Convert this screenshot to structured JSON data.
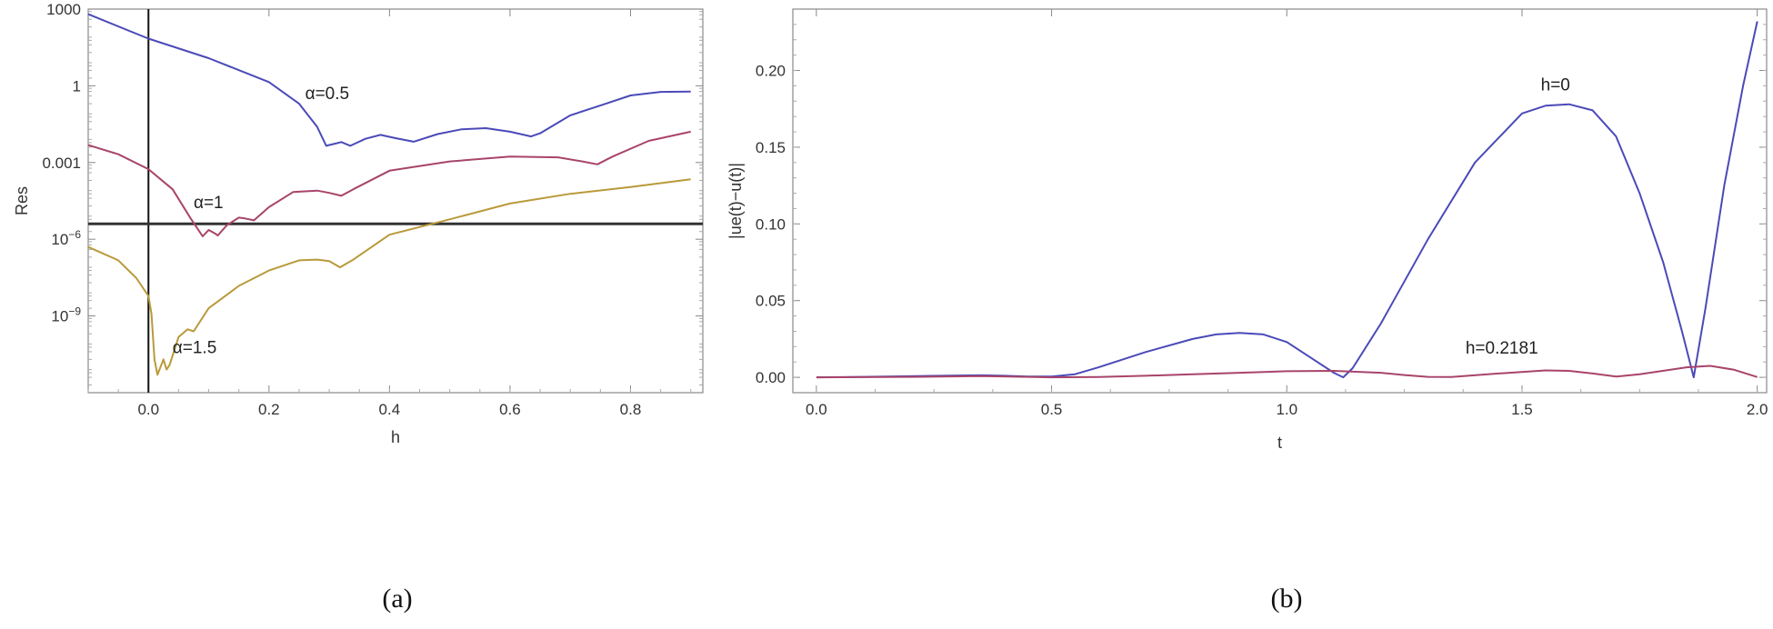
{
  "chart_data": [
    {
      "type": "line",
      "caption": "(a)",
      "xlabel": "h",
      "ylabel": "Res",
      "xscale": "linear",
      "yscale": "log",
      "xlim": [
        -0.1,
        0.92
      ],
      "ylim": [
        1e-12,
        1000
      ],
      "xticks": [
        {
          "v": 0.0,
          "label": "0.0"
        },
        {
          "v": 0.2,
          "label": "0.2"
        },
        {
          "v": 0.4,
          "label": "0.4"
        },
        {
          "v": 0.6,
          "label": "0.6"
        },
        {
          "v": 0.8,
          "label": "0.8"
        }
      ],
      "yticks": [
        {
          "v": 1000,
          "label": "1000",
          "exp": ""
        },
        {
          "v": 1,
          "label": "1",
          "exp": ""
        },
        {
          "v": 0.001,
          "label": "0.001",
          "exp": ""
        },
        {
          "v": 1e-06,
          "label": "10",
          "exp": "−6"
        },
        {
          "v": 1e-09,
          "label": "10",
          "exp": "−9"
        }
      ],
      "reference_lines": {
        "vertical_x": 0,
        "horizontal_y": 4e-06
      },
      "series": [
        {
          "color": "#4a4ab8",
          "label": "α=0.5",
          "label_pos": [
            0.26,
            0.3
          ],
          "points": [
            [
              -0.1,
              630
            ],
            [
              0,
              70
            ],
            [
              0.1,
              12
            ],
            [
              0.2,
              1.4
            ],
            [
              0.25,
              0.2
            ],
            [
              0.28,
              0.025
            ],
            [
              0.295,
              0.0045
            ],
            [
              0.31,
              0.0055
            ],
            [
              0.32,
              0.0063
            ],
            [
              0.335,
              0.0045
            ],
            [
              0.36,
              0.0085
            ],
            [
              0.385,
              0.012
            ],
            [
              0.41,
              0.009
            ],
            [
              0.44,
              0.0065
            ],
            [
              0.48,
              0.013
            ],
            [
              0.52,
              0.02
            ],
            [
              0.56,
              0.022
            ],
            [
              0.6,
              0.016
            ],
            [
              0.635,
              0.0105
            ],
            [
              0.65,
              0.014
            ],
            [
              0.7,
              0.07
            ],
            [
              0.75,
              0.17
            ],
            [
              0.8,
              0.42
            ],
            [
              0.85,
              0.58
            ],
            [
              0.9,
              0.59
            ]
          ]
        },
        {
          "color": "#a8446a",
          "label": "α=1",
          "label_pos": [
            0.075,
            1.65e-05
          ],
          "points": [
            [
              -0.1,
              0.0048
            ],
            [
              -0.05,
              0.0021
            ],
            [
              0,
              0.00055
            ],
            [
              0.04,
              9e-05
            ],
            [
              0.07,
              6.5e-06
            ],
            [
              0.09,
              1.3e-06
            ],
            [
              0.1,
              2.3e-06
            ],
            [
              0.11,
              1.7e-06
            ],
            [
              0.115,
              1.4e-06
            ],
            [
              0.13,
              3.5e-06
            ],
            [
              0.15,
              7e-06
            ],
            [
              0.16,
              6.5e-06
            ],
            [
              0.175,
              5.5e-06
            ],
            [
              0.2,
              1.8e-05
            ],
            [
              0.24,
              7e-05
            ],
            [
              0.28,
              8e-05
            ],
            [
              0.3,
              6.5e-05
            ],
            [
              0.32,
              5e-05
            ],
            [
              0.34,
              9e-05
            ],
            [
              0.4,
              0.00048
            ],
            [
              0.5,
              0.0011
            ],
            [
              0.6,
              0.0017
            ],
            [
              0.68,
              0.0016
            ],
            [
              0.72,
              0.0011
            ],
            [
              0.745,
              0.00085
            ],
            [
              0.77,
              0.0017
            ],
            [
              0.83,
              0.007
            ],
            [
              0.9,
              0.016
            ]
          ]
        },
        {
          "color": "#b99a3a",
          "label": "α=1.5",
          "label_pos": [
            0.04,
            3.5e-11
          ],
          "points": [
            [
              -0.1,
              5e-07
            ],
            [
              -0.05,
              1.5e-07
            ],
            [
              -0.02,
              3e-08
            ],
            [
              0,
              6e-09
            ],
            [
              0.005,
              1.2e-09
            ],
            [
              0.01,
              2e-11
            ],
            [
              0.015,
              5e-12
            ],
            [
              0.02,
              1e-11
            ],
            [
              0.025,
              2e-11
            ],
            [
              0.03,
              8e-12
            ],
            [
              0.035,
              1.2e-11
            ],
            [
              0.05,
              1.5e-10
            ],
            [
              0.065,
              3e-10
            ],
            [
              0.075,
              2.5e-10
            ],
            [
              0.1,
              2e-09
            ],
            [
              0.15,
              1.5e-08
            ],
            [
              0.2,
              6e-08
            ],
            [
              0.25,
              1.5e-07
            ],
            [
              0.28,
              1.6e-07
            ],
            [
              0.3,
              1.4e-07
            ],
            [
              0.318,
              8e-08
            ],
            [
              0.34,
              1.6e-07
            ],
            [
              0.4,
              1.5e-06
            ],
            [
              0.5,
              6e-06
            ],
            [
              0.6,
              2.5e-05
            ],
            [
              0.7,
              6e-05
            ],
            [
              0.8,
              0.00011
            ],
            [
              0.9,
              0.00022
            ]
          ]
        }
      ]
    },
    {
      "type": "line",
      "caption": "(b)",
      "xlabel": "t",
      "ylabel": "|ue(t)−u(t)|",
      "xscale": "linear",
      "yscale": "linear",
      "xlim": [
        -0.05,
        2.02
      ],
      "ylim": [
        -0.01,
        0.24
      ],
      "xticks": [
        {
          "v": 0.0,
          "label": "0.0"
        },
        {
          "v": 0.5,
          "label": "0.5"
        },
        {
          "v": 1.0,
          "label": "1.0"
        },
        {
          "v": 1.5,
          "label": "1.5"
        },
        {
          "v": 2.0,
          "label": "2.0"
        }
      ],
      "yticks": [
        {
          "v": 0.0,
          "label": "0.00"
        },
        {
          "v": 0.05,
          "label": "0.05"
        },
        {
          "v": 0.1,
          "label": "0.10"
        },
        {
          "v": 0.15,
          "label": "0.15"
        },
        {
          "v": 0.2,
          "label": "0.20"
        }
      ],
      "series": [
        {
          "color": "#4a4ab8",
          "label": "h=0",
          "label_pos": [
            1.54,
            0.187
          ],
          "points": [
            [
              0,
              0
            ],
            [
              0.1,
              0.0003
            ],
            [
              0.2,
              0.0007
            ],
            [
              0.3,
              0.0012
            ],
            [
              0.35,
              0.0013
            ],
            [
              0.4,
              0.001
            ],
            [
              0.45,
              0.0005
            ],
            [
              0.5,
              0.0005
            ],
            [
              0.55,
              0.002
            ],
            [
              0.6,
              0.0065
            ],
            [
              0.7,
              0.0165
            ],
            [
              0.8,
              0.025
            ],
            [
              0.85,
              0.028
            ],
            [
              0.9,
              0.029
            ],
            [
              0.95,
              0.028
            ],
            [
              1.0,
              0.023
            ],
            [
              1.05,
              0.013
            ],
            [
              1.1,
              0.003
            ],
            [
              1.12,
              0
            ],
            [
              1.14,
              0.006
            ],
            [
              1.2,
              0.035
            ],
            [
              1.3,
              0.09
            ],
            [
              1.4,
              0.14
            ],
            [
              1.5,
              0.172
            ],
            [
              1.55,
              0.177
            ],
            [
              1.6,
              0.178
            ],
            [
              1.65,
              0.174
            ],
            [
              1.7,
              0.157
            ],
            [
              1.75,
              0.12
            ],
            [
              1.8,
              0.075
            ],
            [
              1.84,
              0.03
            ],
            [
              1.865,
              0
            ],
            [
              1.89,
              0.045
            ],
            [
              1.93,
              0.125
            ],
            [
              1.97,
              0.19
            ],
            [
              2.0,
              0.232
            ]
          ]
        },
        {
          "color": "#a8446a",
          "label": "h=0.2181",
          "label_pos": [
            1.38,
            0.0155
          ],
          "points": [
            [
              0,
              0
            ],
            [
              0.2,
              0.0003
            ],
            [
              0.35,
              0.0008
            ],
            [
              0.5,
              0
            ],
            [
              0.6,
              0.0002
            ],
            [
              0.7,
              0.001
            ],
            [
              0.8,
              0.002
            ],
            [
              0.9,
              0.003
            ],
            [
              1.0,
              0.004
            ],
            [
              1.1,
              0.0042
            ],
            [
              1.2,
              0.003
            ],
            [
              1.25,
              0.0015
            ],
            [
              1.3,
              0.0003
            ],
            [
              1.35,
              0.0002
            ],
            [
              1.45,
              0.0025
            ],
            [
              1.55,
              0.0045
            ],
            [
              1.6,
              0.0042
            ],
            [
              1.65,
              0.0025
            ],
            [
              1.7,
              0.0005
            ],
            [
              1.75,
              0.002
            ],
            [
              1.85,
              0.0065
            ],
            [
              1.9,
              0.0075
            ],
            [
              1.95,
              0.005
            ],
            [
              2.0,
              0.0002
            ]
          ]
        }
      ]
    }
  ]
}
